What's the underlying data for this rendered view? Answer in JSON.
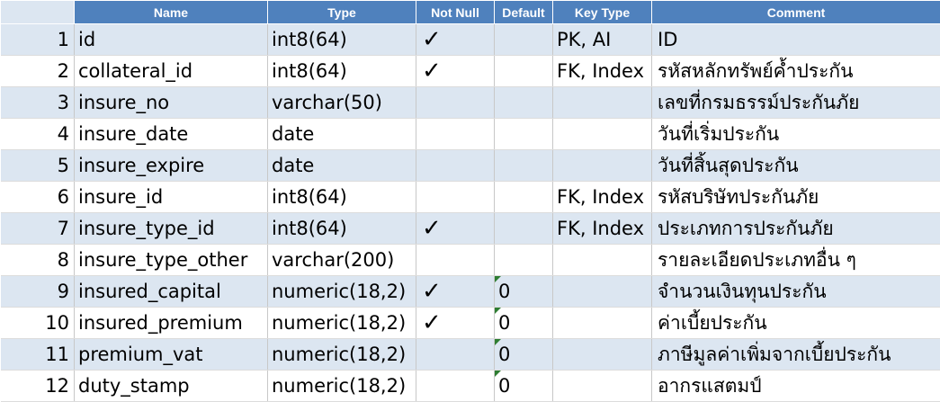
{
  "headers": {
    "name": "Name",
    "type": "Type",
    "not_null": "Not Null",
    "default": "Default",
    "key_type": "Key Type",
    "comment": "Comment"
  },
  "check_glyph": "✓",
  "rows": [
    {
      "no": "1",
      "name": "id",
      "type": "int8(64)",
      "not_null": true,
      "default": "",
      "default_flag": false,
      "key": "PK, AI",
      "comment": "ID"
    },
    {
      "no": "2",
      "name": "collateral_id",
      "type": "int8(64)",
      "not_null": true,
      "default": "",
      "default_flag": false,
      "key": "FK, Index",
      "comment": "รหัสหลักทรัพย์ค้ำประกัน"
    },
    {
      "no": "3",
      "name": "insure_no",
      "type": "varchar(50)",
      "not_null": false,
      "default": "",
      "default_flag": false,
      "key": "",
      "comment": "เลขที่กรมธรรม์ประกันภัย"
    },
    {
      "no": "4",
      "name": "insure_date",
      "type": "date",
      "not_null": false,
      "default": "",
      "default_flag": false,
      "key": "",
      "comment": "วันที่เริ่มประกัน"
    },
    {
      "no": "5",
      "name": "insure_expire",
      "type": "date",
      "not_null": false,
      "default": "",
      "default_flag": false,
      "key": "",
      "comment": "วันที่สิ้นสุดประกัน"
    },
    {
      "no": "6",
      "name": "insure_id",
      "type": "int8(64)",
      "not_null": false,
      "default": "",
      "default_flag": false,
      "key": "FK, Index",
      "comment": "รหัสบริษัทประกันภัย"
    },
    {
      "no": "7",
      "name": "insure_type_id",
      "type": "int8(64)",
      "not_null": true,
      "default": "",
      "default_flag": false,
      "key": "FK, Index",
      "comment": "ประเภทการประกันภัย"
    },
    {
      "no": "8",
      "name": "insure_type_other",
      "type": "varchar(200)",
      "not_null": false,
      "default": "",
      "default_flag": false,
      "key": "",
      "comment": "รายละเอียดประเภทอื่น ๆ"
    },
    {
      "no": "9",
      "name": "insured_capital",
      "type": "numeric(18,2)",
      "not_null": true,
      "default": "0",
      "default_flag": true,
      "key": "",
      "comment": "จำนวนเงินทุนประกัน"
    },
    {
      "no": "10",
      "name": "insured_premium",
      "type": "numeric(18,2)",
      "not_null": true,
      "default": "0",
      "default_flag": true,
      "key": "",
      "comment": "ค่าเบี้ยประกัน"
    },
    {
      "no": "11",
      "name": "premium_vat",
      "type": "numeric(18,2)",
      "not_null": false,
      "default": "0",
      "default_flag": true,
      "key": "",
      "comment": "ภาษีมูลค่าเพิ่มจากเบี้ยประกัน"
    },
    {
      "no": "12",
      "name": "duty_stamp",
      "type": "numeric(18,2)",
      "not_null": false,
      "default": "0",
      "default_flag": true,
      "key": "",
      "comment": "อากรแสตมป์"
    }
  ]
}
